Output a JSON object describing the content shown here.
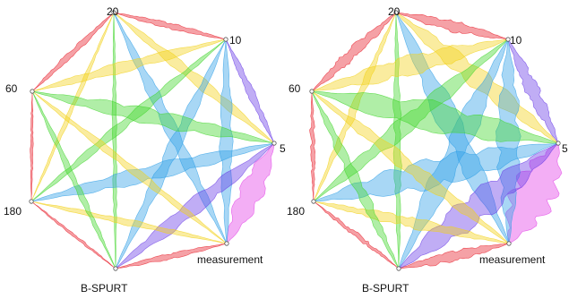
{
  "panels": [
    {
      "id": "left",
      "nodes": [
        {
          "label": "20"
        },
        {
          "label": "10"
        },
        {
          "label": "5"
        },
        {
          "label": "measurement"
        },
        {
          "label": "B-SPURT"
        },
        {
          "label": "180"
        },
        {
          "label": "60"
        }
      ]
    },
    {
      "id": "right",
      "nodes": [
        {
          "label": "20"
        },
        {
          "label": "10"
        },
        {
          "label": "5"
        },
        {
          "label": "measurement"
        },
        {
          "label": "B-SPURT"
        },
        {
          "label": "180"
        },
        {
          "label": "60"
        }
      ]
    }
  ],
  "palette": [
    "#e8202c",
    "#f2d21b",
    "#43d62e",
    "#2f9fe6",
    "#6a3ce6",
    "#e23ee6"
  ]
}
